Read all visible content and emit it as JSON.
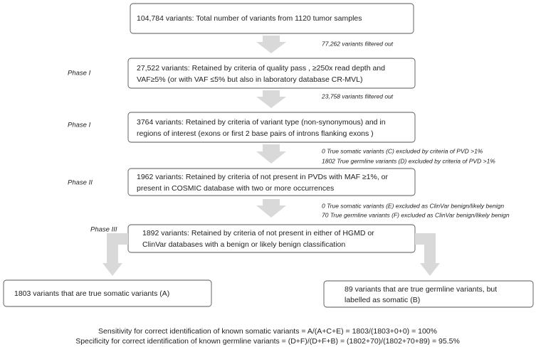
{
  "nodes": [
    {
      "lines": [
        "104,784 variants: Total number of variants from 1120 tumor samples"
      ]
    },
    {
      "lines": [
        "27,522 variants: Retained by criteria of quality pass ,  ≥250x read depth and",
        "VAF≥5% (or with VAF ≤5% but also in laboratory database CR-MVL)"
      ]
    },
    {
      "lines": [
        "3764 variants: Retained by criteria of variant type (non-synonymous) and in",
        "regions of interest (exons or first 2 base pairs of introns flanking exons )"
      ]
    },
    {
      "lines": [
        "1962 variants: Retained by criteria of not present in PVDs with MAF ≥1%, or",
        "present in COSMIC database with two or more occurrences"
      ]
    },
    {
      "lines": [
        "1892 variants: Retained by criteria  of not present in either of HGMD or",
        "ClinVar databases with a benign or likely benign classification"
      ]
    },
    {
      "lines": [
        "1803 variants that are true somatic variants (A)"
      ]
    },
    {
      "lines": [
        "89 variants that are true germline variants, but",
        "labelled as somatic (B)"
      ]
    }
  ],
  "notes": [
    [
      "77,262 variants filtered out"
    ],
    [
      "23,758 variants filtered out"
    ],
    [
      "0 True somatic variants (C) excluded by criteria of PVD >1%",
      "1802 True germline variants (D) excluded by criteria of PVD >1%"
    ],
    [
      "0 True somatic variants (E) excluded  as ClinVar benign/likely benign",
      "70 True germline variants (F) excluded as ClinVar benign/likely benign"
    ]
  ],
  "phases": [
    "Phase I",
    "Phase I",
    "Phase II",
    "Phase III"
  ],
  "footer": [
    "Sensitivity for correct identification of known somatic variants = A/(A+C+E) = 1803/(1803+0+0) = 100%",
    "Specificity for correct identification of known germline variants = (D+F)/(D+F+B) = (1802+70)/(1802+70+89) = 95.5%"
  ]
}
